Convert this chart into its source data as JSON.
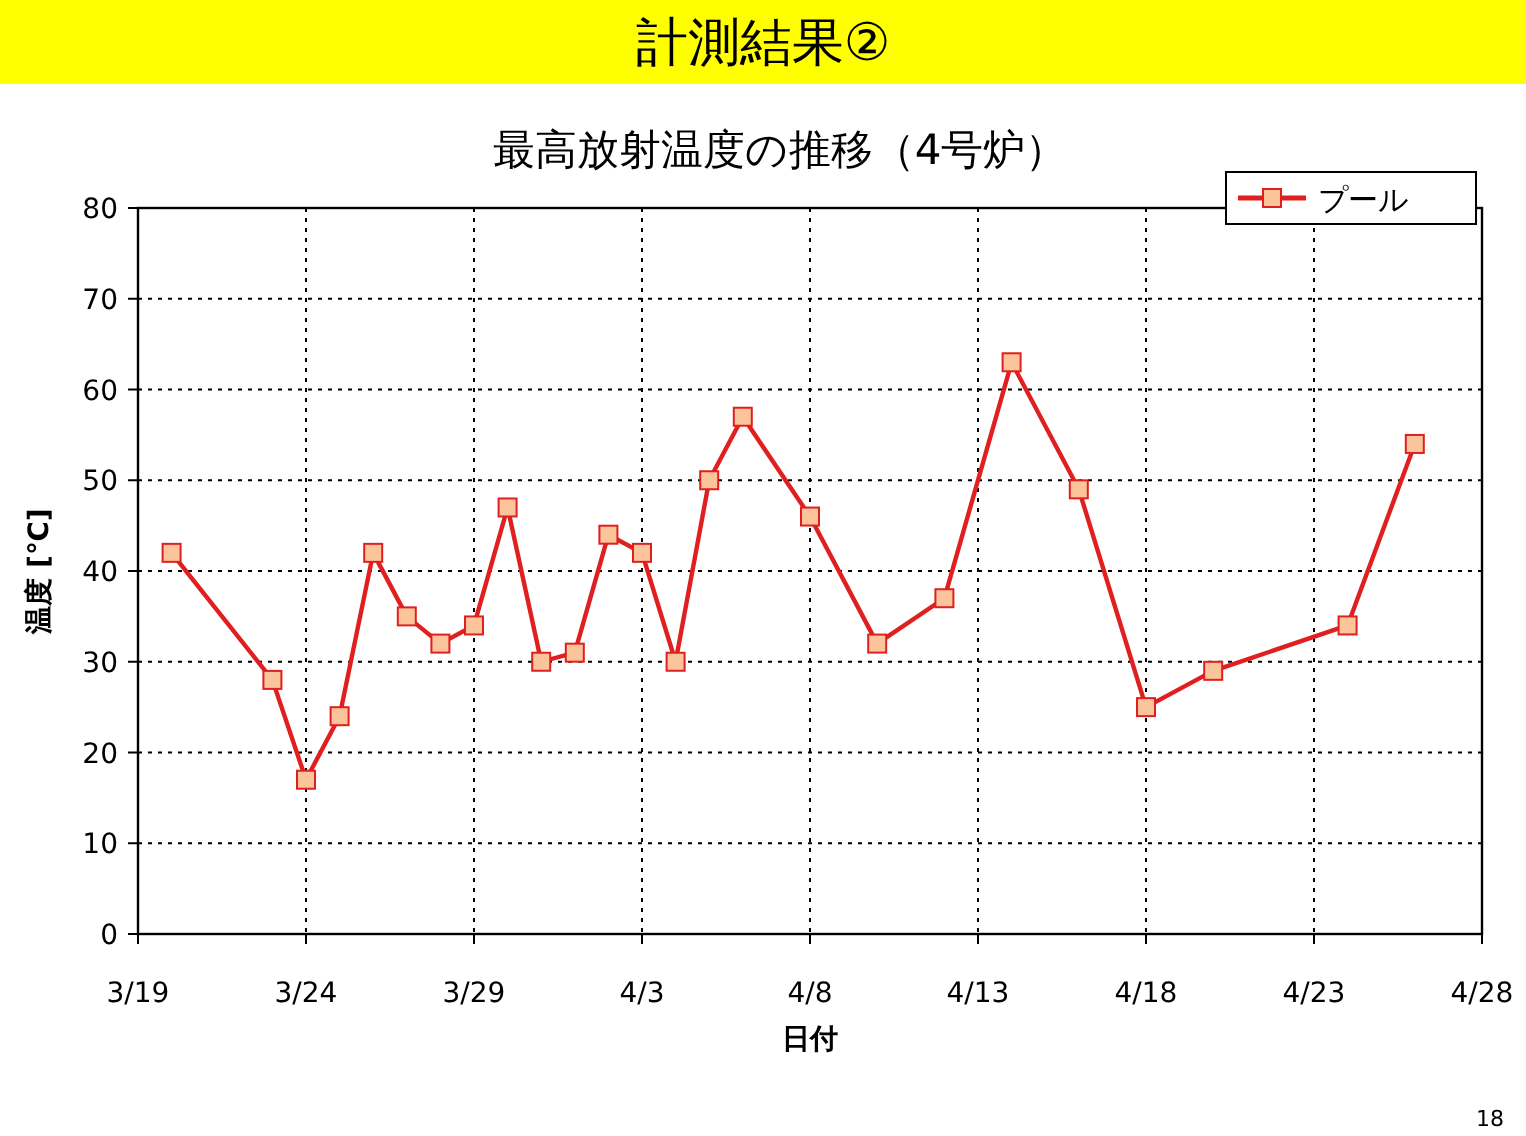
{
  "chart_data": {
    "type": "line",
    "title": "計測結果②",
    "subtitle": "最高放射温度の推移（4号炉）",
    "xlabel": "日付",
    "ylabel": "温度 [℃]",
    "x": [
      "--03-20",
      "--03-23",
      "--03-24",
      "--03-25",
      "--03-26",
      "--03-27",
      "--03-28",
      "--03-29",
      "--03-30",
      "--03-31",
      "--04-01",
      "--04-02",
      "--04-03",
      "--04-04",
      "--04-05",
      "--04-06",
      "--04-08",
      "--04-10",
      "--04-12",
      "--04-14",
      "--04-16",
      "--04-18",
      "--04-20",
      "--04-24",
      "--04-26"
    ],
    "series": [
      {
        "name": "プール",
        "color": "#e02020",
        "values": [
          42,
          28,
          17,
          24,
          42,
          35,
          32,
          34,
          47,
          30,
          31,
          44,
          42,
          30,
          50,
          57,
          46,
          32,
          37,
          63,
          49,
          25,
          29,
          34,
          54
        ]
      }
    ],
    "xlim": [
      "--03-19",
      "--04-28"
    ],
    "xticks": [
      {
        "value": "--03-19",
        "label": "3/19"
      },
      {
        "value": "--03-24",
        "label": "3/24"
      },
      {
        "value": "--03-29",
        "label": "3/29"
      },
      {
        "value": "--04-03",
        "label": "4/3"
      },
      {
        "value": "--04-08",
        "label": "4/8"
      },
      {
        "value": "--04-13",
        "label": "4/13"
      },
      {
        "value": "--04-18",
        "label": "4/18"
      },
      {
        "value": "--04-23",
        "label": "4/23"
      },
      {
        "value": "--04-28",
        "label": "4/28"
      }
    ],
    "ylim": [
      0,
      80
    ],
    "yticks": [
      0,
      10,
      20,
      30,
      40,
      50,
      60,
      70,
      80
    ],
    "grid": true,
    "legend": "top right",
    "marker": "square",
    "line_style": "solid",
    "annotations": [
      "18"
    ]
  }
}
